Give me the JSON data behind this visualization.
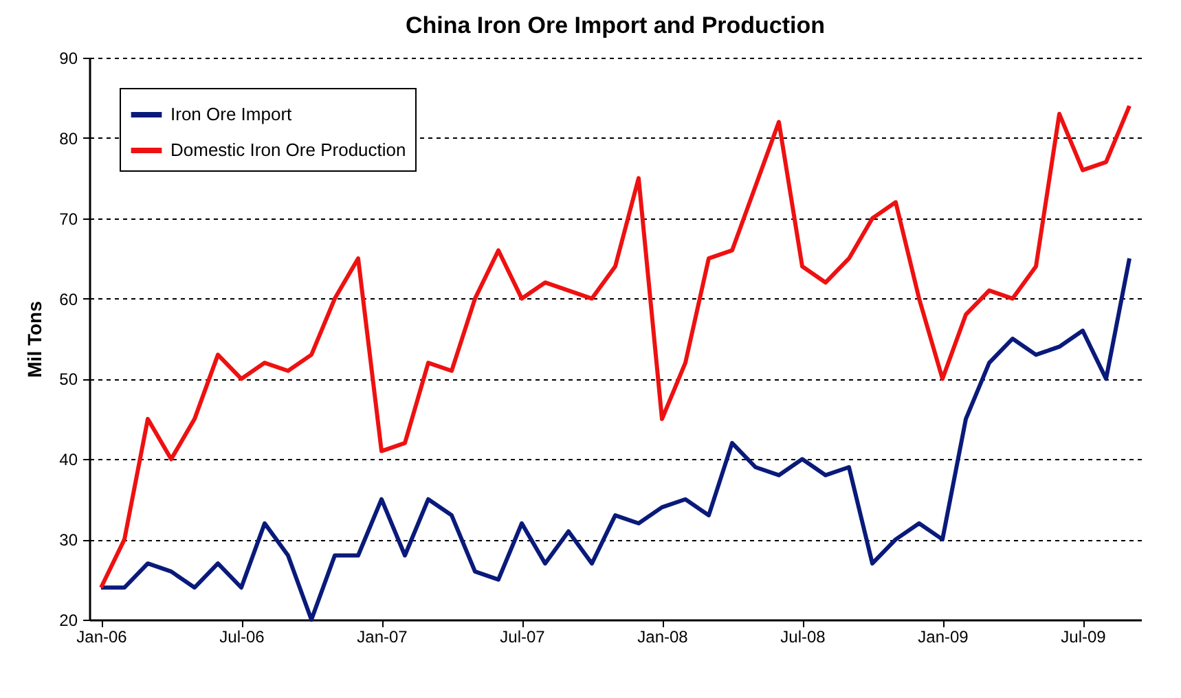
{
  "chart_data": {
    "type": "line",
    "title": "China Iron Ore Import and Production",
    "ylabel": "Mil Tons",
    "categories": [
      "Jan-06",
      null,
      null,
      null,
      null,
      null,
      "Jul-06",
      null,
      null,
      null,
      null,
      null,
      "Jan-07",
      null,
      null,
      null,
      null,
      null,
      "Jul-07",
      null,
      null,
      null,
      null,
      null,
      "Jan-08",
      null,
      null,
      null,
      null,
      null,
      "Jul-08",
      null,
      null,
      null,
      null,
      null,
      "Jan-09",
      null,
      null,
      null,
      null,
      null,
      "Jul-09",
      null,
      null
    ],
    "series": [
      {
        "name": "Iron Ore Import",
        "color": "#0a1a7a",
        "values": [
          24,
          24,
          27,
          26,
          24,
          27,
          24,
          32,
          28,
          20,
          28,
          28,
          35,
          28,
          35,
          33,
          26,
          25,
          32,
          27,
          31,
          27,
          33,
          32,
          34,
          35,
          33,
          42,
          39,
          38,
          40,
          38,
          39,
          27,
          30,
          32,
          30,
          45,
          52,
          55,
          53,
          54,
          56,
          50,
          65
        ]
      },
      {
        "name": "Domestic Iron Ore Production",
        "color": "#ee1111",
        "values": [
          24,
          30,
          45,
          40,
          45,
          53,
          50,
          52,
          51,
          53,
          60,
          65,
          41,
          42,
          52,
          51,
          60,
          66,
          60,
          62,
          61,
          60,
          64,
          75,
          45,
          52,
          65,
          66,
          74,
          82,
          64,
          62,
          65,
          70,
          72,
          60,
          50,
          58,
          61,
          60,
          64,
          83,
          76,
          77,
          84
        ]
      }
    ],
    "ylim": [
      20,
      90
    ],
    "yticks": [
      20,
      30,
      40,
      50,
      60,
      70,
      80,
      90
    ],
    "grid": "y",
    "legend": "top left",
    "marker": "none",
    "line_style": "solid"
  }
}
